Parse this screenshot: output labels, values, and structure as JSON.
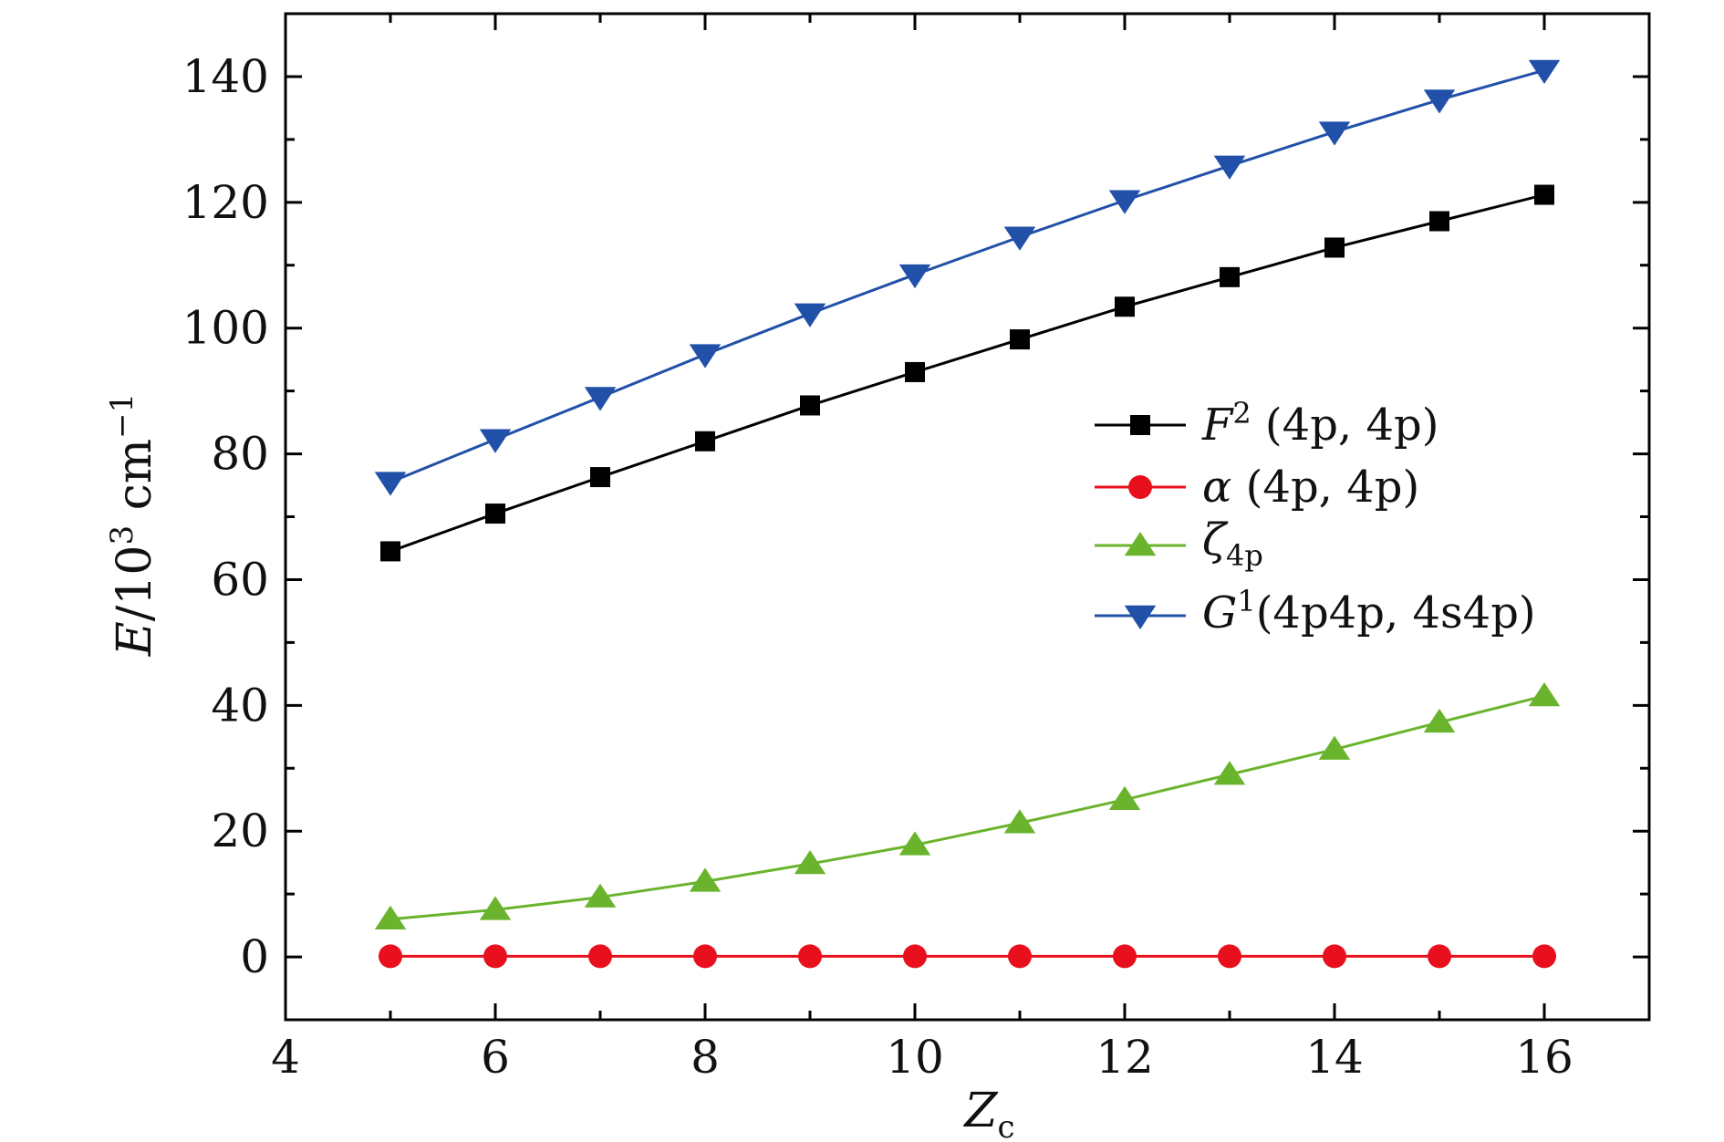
{
  "chart_data": {
    "type": "line",
    "xlabel": {
      "main": "Z",
      "sub": "c"
    },
    "ylabel": {
      "main": "E",
      "mid": "/10",
      "sup": "3",
      "rest": " cm",
      "sup2": "−1"
    },
    "xlim": [
      4,
      17
    ],
    "ylim": [
      -10,
      150
    ],
    "x_ticks": [
      4,
      6,
      8,
      10,
      12,
      14,
      16
    ],
    "y_ticks": [
      0,
      20,
      40,
      60,
      80,
      100,
      120,
      140
    ],
    "x_tick_labels": [
      "4",
      "6",
      "8",
      "10",
      "12",
      "14",
      "16"
    ],
    "y_tick_labels": [
      "0",
      "20",
      "40",
      "60",
      "80",
      "100",
      "120",
      "140"
    ],
    "grid": false,
    "legend_position": "center-right",
    "x": [
      5,
      6,
      7,
      8,
      9,
      10,
      11,
      12,
      13,
      14,
      15,
      16
    ],
    "series": [
      {
        "key": "F2",
        "color": "#000000",
        "marker": "square",
        "legend": {
          "main": "F",
          "sup": "2",
          "rest": " (4p, 4p)"
        },
        "values": [
          64.5,
          70.5,
          76.3,
          82.0,
          87.7,
          93.0,
          98.2,
          103.4,
          108.1,
          112.8,
          117.0,
          121.2
        ]
      },
      {
        "key": "alpha",
        "color": "#e8101c",
        "marker": "circle",
        "legend": {
          "main": "α",
          "rest": " (4p, 4p)"
        },
        "values": [
          0.1,
          0.1,
          0.1,
          0.1,
          0.1,
          0.1,
          0.1,
          0.1,
          0.1,
          0.1,
          0.1,
          0.1
        ]
      },
      {
        "key": "zeta4p",
        "color": "#6ab42d",
        "marker": "triangle-up",
        "legend": {
          "main": "ζ",
          "sub": "4p"
        },
        "values": [
          6.0,
          7.5,
          9.5,
          12.0,
          14.8,
          17.8,
          21.3,
          25.0,
          29.0,
          33.0,
          37.3,
          41.5
        ]
      },
      {
        "key": "G1",
        "color": "#2050a8",
        "marker": "triangle-down",
        "legend": {
          "main": "G",
          "sup": "1",
          "rest": "(4p4p, 4s4p)"
        },
        "values": [
          75.5,
          82.3,
          89.0,
          95.8,
          102.3,
          108.5,
          114.5,
          120.3,
          125.8,
          131.2,
          136.3,
          141.0
        ]
      }
    ]
  }
}
